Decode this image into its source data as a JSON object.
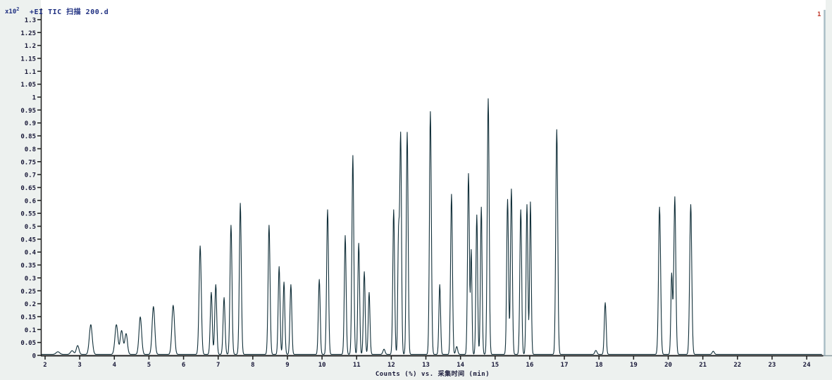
{
  "header": {
    "scale_prefix": "x10",
    "scale_exponent": "2",
    "trace_label": "+EI TIC 扫描 200.d",
    "marker_label": "1"
  },
  "colors": {
    "background": "#edf1ef",
    "plot_background": "#ffffff",
    "trace": "#12303a",
    "axis": "#1c1c1c",
    "tick_text": "#181838",
    "title_text": "#1d2e80",
    "marker_red": "#c0392b",
    "right_border": "#a9bdc5",
    "axis_extension": "#8b9aa0"
  },
  "chart_data": {
    "type": "line",
    "title": "+EI TIC 扫描 200.d",
    "xlabel": "Counts (%) vs. 采集时间 (min)",
    "ylabel": "",
    "y_scale_note": "x10^2",
    "grid": false,
    "legend": false,
    "x_axis": {
      "min": 2,
      "max": 24,
      "step": 1,
      "labels": [
        "2",
        "3",
        "4",
        "5",
        "6",
        "7",
        "8",
        "9",
        "10",
        "11",
        "12",
        "13",
        "14",
        "15",
        "16",
        "17",
        "18",
        "19",
        "20",
        "21",
        "22",
        "23",
        "24"
      ]
    },
    "y_axis": {
      "min": 0,
      "max": 1.3,
      "step": 0.05,
      "labels": [
        "0",
        "0.05",
        "0.1",
        "0.15",
        "0.2",
        "0.25",
        "0.3",
        "0.35",
        "0.4",
        "0.45",
        "0.5",
        "0.55",
        "0.6",
        "0.65",
        "0.7",
        "0.75",
        "0.8",
        "0.85",
        "0.9",
        "0.95",
        "1",
        "1.05",
        "1.1",
        "1.15",
        "1.2",
        "1.25",
        "1.3"
      ]
    },
    "trace_start_min": 1.88,
    "trace_end_min": 24.45,
    "baseline": 0.004,
    "peaks": [
      {
        "rt": 2.37,
        "h": 0.01,
        "w": 0.05
      },
      {
        "rt": 2.78,
        "h": 0.014,
        "w": 0.045
      },
      {
        "rt": 2.94,
        "h": 0.034,
        "w": 0.038
      },
      {
        "rt": 3.32,
        "h": 0.115,
        "w": 0.042
      },
      {
        "rt": 4.06,
        "h": 0.115,
        "w": 0.042
      },
      {
        "rt": 4.21,
        "h": 0.092,
        "w": 0.04
      },
      {
        "rt": 4.34,
        "h": 0.08,
        "w": 0.038
      },
      {
        "rt": 4.75,
        "h": 0.145,
        "w": 0.038
      },
      {
        "rt": 5.13,
        "h": 0.185,
        "w": 0.038
      },
      {
        "rt": 5.7,
        "h": 0.19,
        "w": 0.038
      },
      {
        "rt": 6.48,
        "h": 0.42,
        "w": 0.032
      },
      {
        "rt": 6.8,
        "h": 0.24,
        "w": 0.028
      },
      {
        "rt": 6.93,
        "h": 0.27,
        "w": 0.028
      },
      {
        "rt": 7.17,
        "h": 0.22,
        "w": 0.028
      },
      {
        "rt": 7.37,
        "h": 0.5,
        "w": 0.028
      },
      {
        "rt": 7.64,
        "h": 0.585,
        "w": 0.028
      },
      {
        "rt": 8.47,
        "h": 0.5,
        "w": 0.028
      },
      {
        "rt": 8.76,
        "h": 0.34,
        "w": 0.026
      },
      {
        "rt": 8.9,
        "h": 0.28,
        "w": 0.026
      },
      {
        "rt": 9.1,
        "h": 0.27,
        "w": 0.026
      },
      {
        "rt": 9.92,
        "h": 0.29,
        "w": 0.026
      },
      {
        "rt": 10.16,
        "h": 0.56,
        "w": 0.027
      },
      {
        "rt": 10.67,
        "h": 0.46,
        "w": 0.026
      },
      {
        "rt": 10.89,
        "h": 0.77,
        "w": 0.027
      },
      {
        "rt": 11.06,
        "h": 0.43,
        "w": 0.025
      },
      {
        "rt": 11.22,
        "h": 0.32,
        "w": 0.025
      },
      {
        "rt": 11.36,
        "h": 0.24,
        "w": 0.025
      },
      {
        "rt": 11.79,
        "h": 0.02,
        "w": 0.03
      },
      {
        "rt": 12.07,
        "h": 0.56,
        "w": 0.026
      },
      {
        "rt": 12.21,
        "h": 0.45,
        "w": 0.022
      },
      {
        "rt": 12.27,
        "h": 0.85,
        "w": 0.025
      },
      {
        "rt": 12.46,
        "h": 0.86,
        "w": 0.026
      },
      {
        "rt": 13.13,
        "h": 0.94,
        "w": 0.027
      },
      {
        "rt": 13.4,
        "h": 0.27,
        "w": 0.024
      },
      {
        "rt": 13.74,
        "h": 0.62,
        "w": 0.026
      },
      {
        "rt": 13.89,
        "h": 0.03,
        "w": 0.028
      },
      {
        "rt": 14.23,
        "h": 0.7,
        "w": 0.026
      },
      {
        "rt": 14.31,
        "h": 0.4,
        "w": 0.02
      },
      {
        "rt": 14.47,
        "h": 0.54,
        "w": 0.024
      },
      {
        "rt": 14.6,
        "h": 0.57,
        "w": 0.024
      },
      {
        "rt": 14.8,
        "h": 0.99,
        "w": 0.027
      },
      {
        "rt": 15.36,
        "h": 0.6,
        "w": 0.026
      },
      {
        "rt": 15.47,
        "h": 0.64,
        "w": 0.026
      },
      {
        "rt": 15.74,
        "h": 0.56,
        "w": 0.026
      },
      {
        "rt": 15.92,
        "h": 0.58,
        "w": 0.025
      },
      {
        "rt": 16.02,
        "h": 0.59,
        "w": 0.023
      },
      {
        "rt": 16.78,
        "h": 0.87,
        "w": 0.028
      },
      {
        "rt": 17.91,
        "h": 0.015,
        "w": 0.03
      },
      {
        "rt": 18.18,
        "h": 0.2,
        "w": 0.026
      },
      {
        "rt": 19.75,
        "h": 0.57,
        "w": 0.03
      },
      {
        "rt": 20.1,
        "h": 0.31,
        "w": 0.024
      },
      {
        "rt": 20.19,
        "h": 0.61,
        "w": 0.029
      },
      {
        "rt": 20.65,
        "h": 0.58,
        "w": 0.03
      },
      {
        "rt": 21.3,
        "h": 0.012,
        "w": 0.03
      }
    ]
  }
}
